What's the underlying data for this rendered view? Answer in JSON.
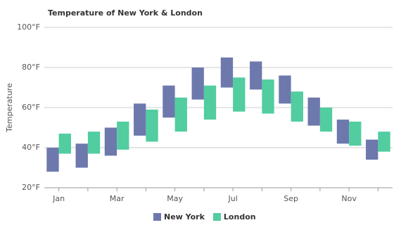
{
  "chart_data": {
    "type": "rangebar",
    "title": "Temperature of New York & London",
    "y_label": "Temperature",
    "categories": [
      "Jan",
      null,
      "Mar",
      null,
      "May",
      null,
      "Jul",
      null,
      "Sep",
      null,
      "Nov",
      null
    ],
    "series": [
      {
        "name": "New York",
        "color": "#6d78ad",
        "values": [
          [
            28,
            40
          ],
          [
            30,
            42
          ],
          [
            36,
            50
          ],
          [
            46,
            62
          ],
          [
            55,
            71
          ],
          [
            64,
            80
          ],
          [
            70,
            85
          ],
          [
            69,
            83
          ],
          [
            62,
            76
          ],
          [
            51,
            65
          ],
          [
            42,
            54
          ],
          [
            34,
            44
          ]
        ]
      },
      {
        "name": "London",
        "color": "#51cda0",
        "values": [
          [
            37,
            47
          ],
          [
            37,
            48
          ],
          [
            39,
            53
          ],
          [
            43,
            59
          ],
          [
            48,
            65
          ],
          [
            54,
            71
          ],
          [
            58,
            75
          ],
          [
            57,
            74
          ],
          [
            53,
            68
          ],
          [
            48,
            60
          ],
          [
            41,
            53
          ],
          [
            38,
            48
          ]
        ]
      }
    ],
    "ylim": [
      20,
      100
    ],
    "yticks": [
      {
        "value": 20,
        "label": "20°F"
      },
      {
        "value": 40,
        "label": "40°F"
      },
      {
        "value": 60,
        "label": "60°F"
      },
      {
        "value": 80,
        "label": "80°F"
      },
      {
        "value": 100,
        "label": "100°F"
      }
    ],
    "grid": true,
    "legend": "bottom"
  }
}
